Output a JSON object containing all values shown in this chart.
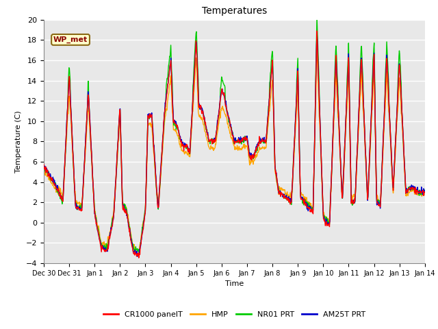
{
  "title": "Temperatures",
  "xlabel": "Time",
  "ylabel": "Temperature (C)",
  "ylim": [
    -4,
    20
  ],
  "annotation_text": "WP_met",
  "annotation_color": "#8B0000",
  "annotation_bg": "#FFFFCC",
  "bg_color": "#E8E8E8",
  "grid_color": "white",
  "series_colors": {
    "CR1000 panelT": "#FF0000",
    "HMP": "#FFA500",
    "NR01 PRT": "#00CC00",
    "AM25T PRT": "#0000CC"
  },
  "x_tick_labels": [
    "Dec 30",
    "Dec 31",
    "Jan 1",
    "Jan 2",
    "Jan 3",
    "Jan 4",
    "Jan 5",
    "Jan 6",
    "Jan 7",
    "Jan 8",
    "Jan 9",
    "Jan 10",
    "Jan 11",
    "Jan 12",
    "Jan 13",
    "Jan 14"
  ],
  "key_times": [
    0,
    0.1,
    0.25,
    0.5,
    0.75,
    1.0,
    1.25,
    1.5,
    1.75,
    2.0,
    2.1,
    2.25,
    2.5,
    2.75,
    3.0,
    3.1,
    3.25,
    3.5,
    3.75,
    4.0,
    4.1,
    4.25,
    4.5,
    4.75,
    5.0,
    5.1,
    5.25,
    5.4,
    5.5,
    5.6,
    5.75,
    6.0,
    6.1,
    6.25,
    6.5,
    6.75,
    7.0,
    7.1,
    7.25,
    7.5,
    7.75,
    8.0,
    8.1,
    8.25,
    8.5,
    8.75,
    9.0,
    9.1,
    9.25,
    9.5,
    9.75,
    10.0,
    10.1,
    10.25,
    10.4,
    10.5,
    10.6,
    10.75,
    11.0,
    11.1,
    11.25,
    11.5,
    11.75,
    12.0,
    12.1,
    12.25,
    12.5,
    12.75,
    13.0,
    13.1,
    13.25,
    13.5,
    13.75,
    14.0,
    14.25,
    14.5,
    14.75,
    15.0
  ],
  "key_vals_base": [
    5.5,
    5.2,
    4.5,
    3.5,
    2.0,
    14.5,
    1.5,
    1.2,
    13.0,
    0.8,
    -0.5,
    -2.5,
    -2.8,
    0.5,
    11.5,
    1.5,
    1.0,
    -2.8,
    -3.3,
    1.0,
    10.5,
    10.5,
    1.0,
    10.8,
    16.0,
    10.0,
    9.5,
    8.0,
    7.5,
    7.5,
    7.0,
    18.0,
    11.5,
    11.0,
    8.0,
    8.0,
    13.0,
    12.5,
    10.5,
    8.0,
    8.0,
    8.3,
    6.5,
    6.5,
    8.0,
    8.0,
    16.0,
    5.5,
    3.0,
    2.5,
    2.0,
    15.0,
    2.5,
    2.0,
    1.5,
    1.2,
    1.0,
    19.0,
    0.5,
    0.0,
    -0.3,
    16.5,
    2.0,
    16.5,
    2.0,
    2.0,
    16.5,
    2.0,
    17.0,
    2.0,
    1.5,
    16.5,
    3.0,
    16.0,
    3.0,
    3.5,
    3.0,
    3.0
  ],
  "figsize": [
    6.4,
    4.8
  ],
  "dpi": 100
}
